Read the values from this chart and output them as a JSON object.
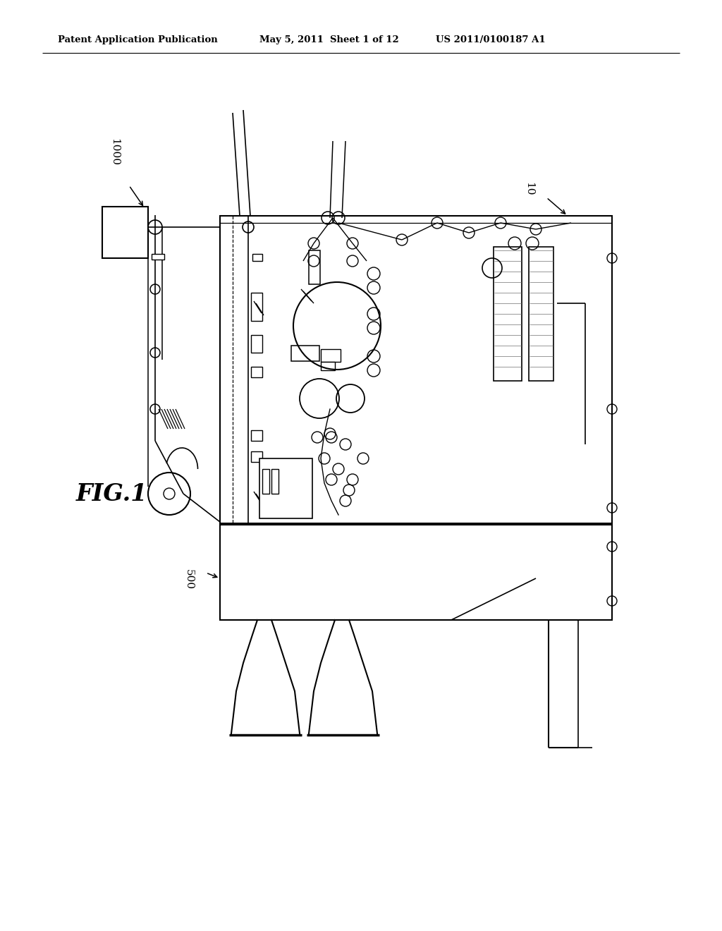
{
  "background_color": "#ffffff",
  "header_text": "Patent Application Publication",
  "header_date": "May 5, 2011",
  "header_sheet": "Sheet 1 of 12",
  "header_patent": "US 2011/0100187 A1",
  "fig_label": "FIG.1",
  "label_1000": "1000",
  "label_10": "10",
  "label_500": "500",
  "line_color": "#000000",
  "gray_fill": "#b0b0b0",
  "dark_gray": "#888888"
}
